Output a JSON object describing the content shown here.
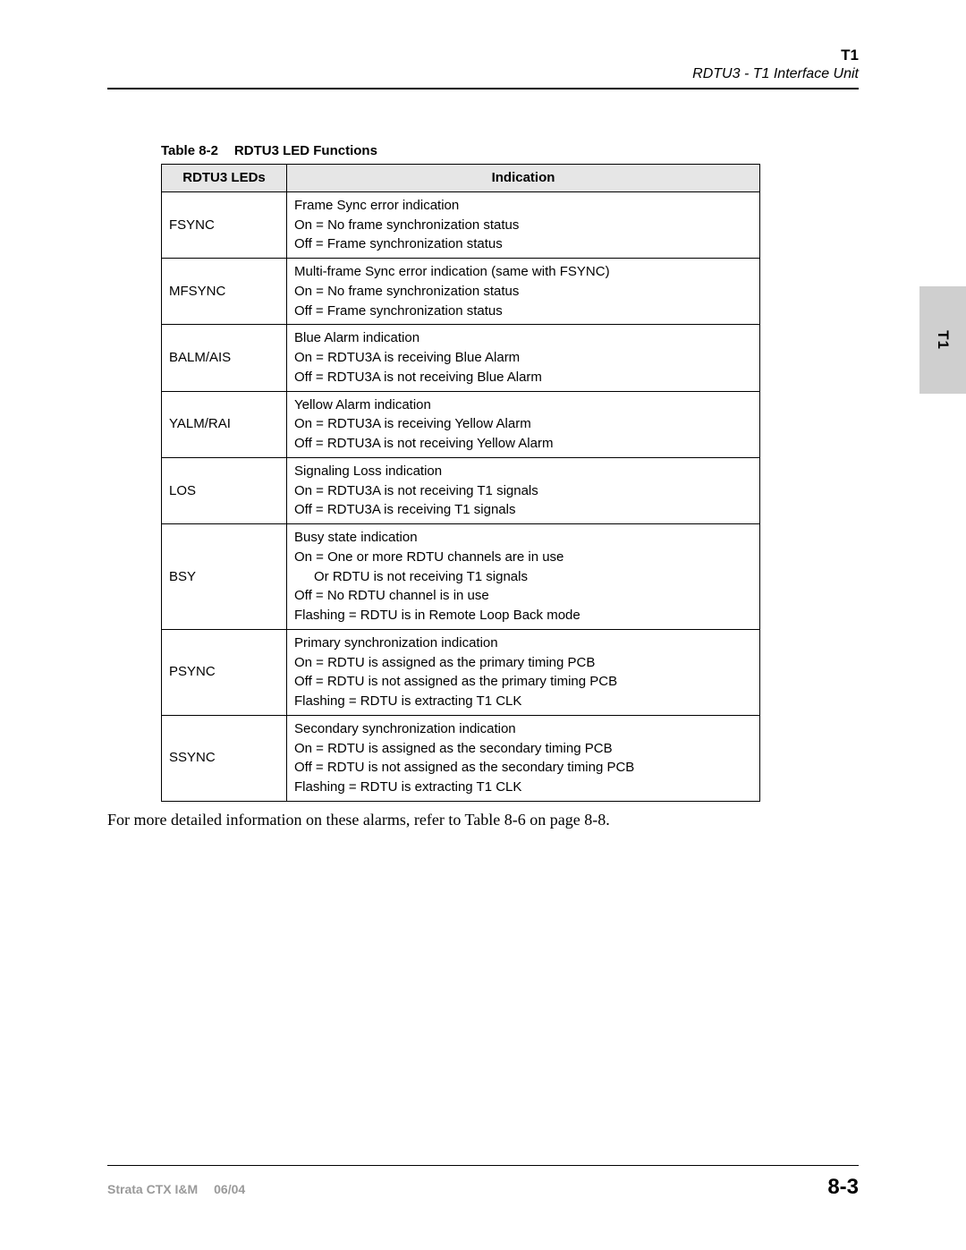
{
  "header": {
    "title": "T1",
    "subtitle": "RDTU3 - T1 Interface Unit"
  },
  "sidetab": {
    "label": "T1"
  },
  "table": {
    "caption_number": "Table 8-2",
    "caption_title": "RDTU3 LED Functions",
    "columns": [
      "RDTU3 LEDs",
      "Indication"
    ],
    "rows": [
      {
        "led": "FSYNC",
        "lines": [
          "Frame Sync error indication",
          "On = No frame synchronization status",
          "Off = Frame synchronization status"
        ]
      },
      {
        "led": "MFSYNC",
        "lines": [
          "Multi-frame Sync error indication (same with FSYNC)",
          "On = No frame synchronization status",
          "Off = Frame synchronization status"
        ]
      },
      {
        "led": "BALM/AIS",
        "lines": [
          "Blue Alarm indication",
          "On = RDTU3A is receiving Blue Alarm",
          "Off = RDTU3A is not receiving Blue Alarm"
        ]
      },
      {
        "led": "YALM/RAI",
        "lines": [
          "Yellow Alarm indication",
          "On = RDTU3A is receiving Yellow Alarm",
          "Off = RDTU3A is not receiving Yellow Alarm"
        ]
      },
      {
        "led": "LOS",
        "lines": [
          "Signaling Loss indication",
          "On = RDTU3A is not receiving T1 signals",
          "Off = RDTU3A is receiving T1 signals"
        ]
      },
      {
        "led": "BSY",
        "lines": [
          "Busy state indication",
          "On = One or more RDTU channels are in use",
          {
            "indent": true,
            "text": "Or RDTU is not receiving T1 signals"
          },
          "Off = No RDTU channel is in use",
          "Flashing = RDTU is in Remote Loop Back mode"
        ]
      },
      {
        "led": "PSYNC",
        "lines": [
          "Primary synchronization indication",
          "On = RDTU is assigned as the primary timing PCB",
          "Off = RDTU is not assigned as the primary timing PCB",
          "Flashing = RDTU is extracting T1 CLK"
        ]
      },
      {
        "led": "SSYNC",
        "lines": [
          "Secondary synchronization indication",
          "On = RDTU is assigned as the secondary timing PCB",
          "Off = RDTU is not assigned as the secondary timing PCB",
          "Flashing = RDTU is extracting T1 CLK"
        ]
      }
    ]
  },
  "footnote": "For more detailed information on these alarms, refer to Table 8-6 on page 8-8.",
  "footer": {
    "doc": "Strata CTX I&M",
    "date": "06/04",
    "page": "8-3"
  }
}
